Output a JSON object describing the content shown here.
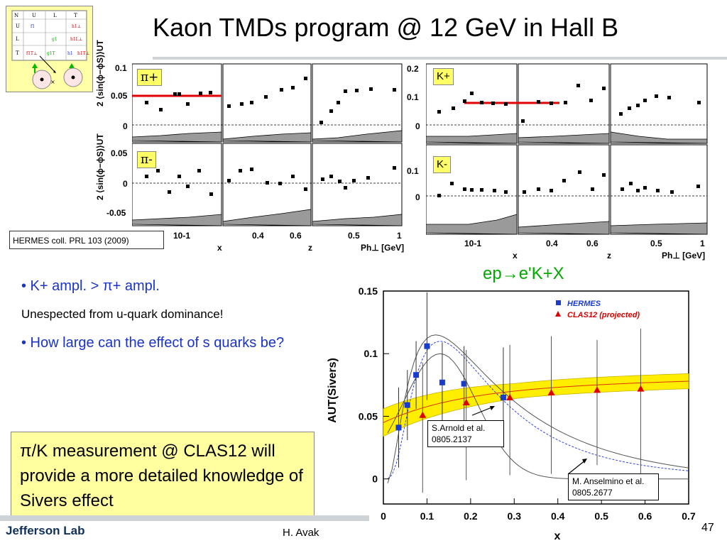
{
  "title": "Kaon TMDs program @ 12 GeV in Hall B",
  "thumbnail": {
    "rows": [
      "N",
      "U",
      "L",
      "T"
    ],
    "cols": [
      "U",
      "L",
      "T"
    ],
    "cells": [
      "f1",
      "h1⊥",
      "g1",
      "h1L⊥",
      "f1T⊥",
      "g1T",
      "h1",
      "h1T⊥"
    ],
    "cross": "×"
  },
  "panel_left": {
    "ylabel": "2 ⟨sin(ϕ−ϕS)⟩UT",
    "tag_top": "π+",
    "tag_bottom": "π-",
    "yticks_top": [
      "0.1",
      "0.05",
      "0"
    ],
    "yticks_bottom": [
      "0.05",
      "0",
      "-0.05"
    ],
    "xticks": [
      "10-1",
      "0.4",
      "0.6",
      "0.5",
      "1"
    ],
    "xlabels": [
      "x",
      "z",
      "Ph⊥ [GeV]"
    ]
  },
  "panel_right": {
    "tag_top": "K+",
    "tag_bottom": "K-",
    "yticks_top": [
      "0.2",
      "0.1",
      "0"
    ],
    "yticks_bottom": [
      "0.1",
      "0"
    ],
    "xticks": [
      "10-1",
      "0.4",
      "0.6",
      "0.5",
      "1"
    ],
    "xlabels": [
      "x",
      "z",
      "Ph⊥ [GeV]"
    ]
  },
  "citation": "HERMES coll. PRL 103 (2009)",
  "reaction": "ep→e'K+X",
  "bullets": {
    "b1": "• K+ ampl. > π+ ampl.",
    "b1_note": "Unespected from u-quark dominance!",
    "b2": "• How large can the effect of s quarks be?"
  },
  "callout": "π/K measurement @ CLAS12 will provide a more detailed knowledge of Sivers effect",
  "chart_data": {
    "type": "scatter",
    "ylabel": "AUT(Sivers)",
    "xlabel": "x",
    "xlim": [
      0,
      0.7
    ],
    "ylim": [
      -0.02,
      0.15
    ],
    "xticks": [
      0,
      0.1,
      0.2,
      0.3,
      0.4,
      0.5,
      0.6,
      0.7
    ],
    "yticks": [
      0,
      0.05,
      0.1,
      0.15
    ],
    "legend": [
      "HERMES",
      "CLAS12 (projected)"
    ],
    "series": [
      {
        "name": "HERMES",
        "color": "#1a3ccc",
        "x": [
          0.035,
          0.055,
          0.075,
          0.1,
          0.135,
          0.185,
          0.275
        ],
        "y": [
          0.041,
          0.059,
          0.083,
          0.106,
          0.077,
          0.076,
          0.065
        ]
      },
      {
        "name": "CLAS12 (projected)",
        "color": "#dd0000",
        "x": [
          0.09,
          0.19,
          0.29,
          0.385,
          0.49,
          0.59
        ],
        "y": [
          0.051,
          0.061,
          0.065,
          0.069,
          0.071,
          0.072
        ]
      }
    ],
    "annotations": [
      "S.Arnold et al. 0805.2137",
      "M. Anselmino et al. 0805.2677"
    ]
  },
  "footer": {
    "logo": "Jefferson Lab",
    "author": "H. Avak",
    "page": "47"
  }
}
